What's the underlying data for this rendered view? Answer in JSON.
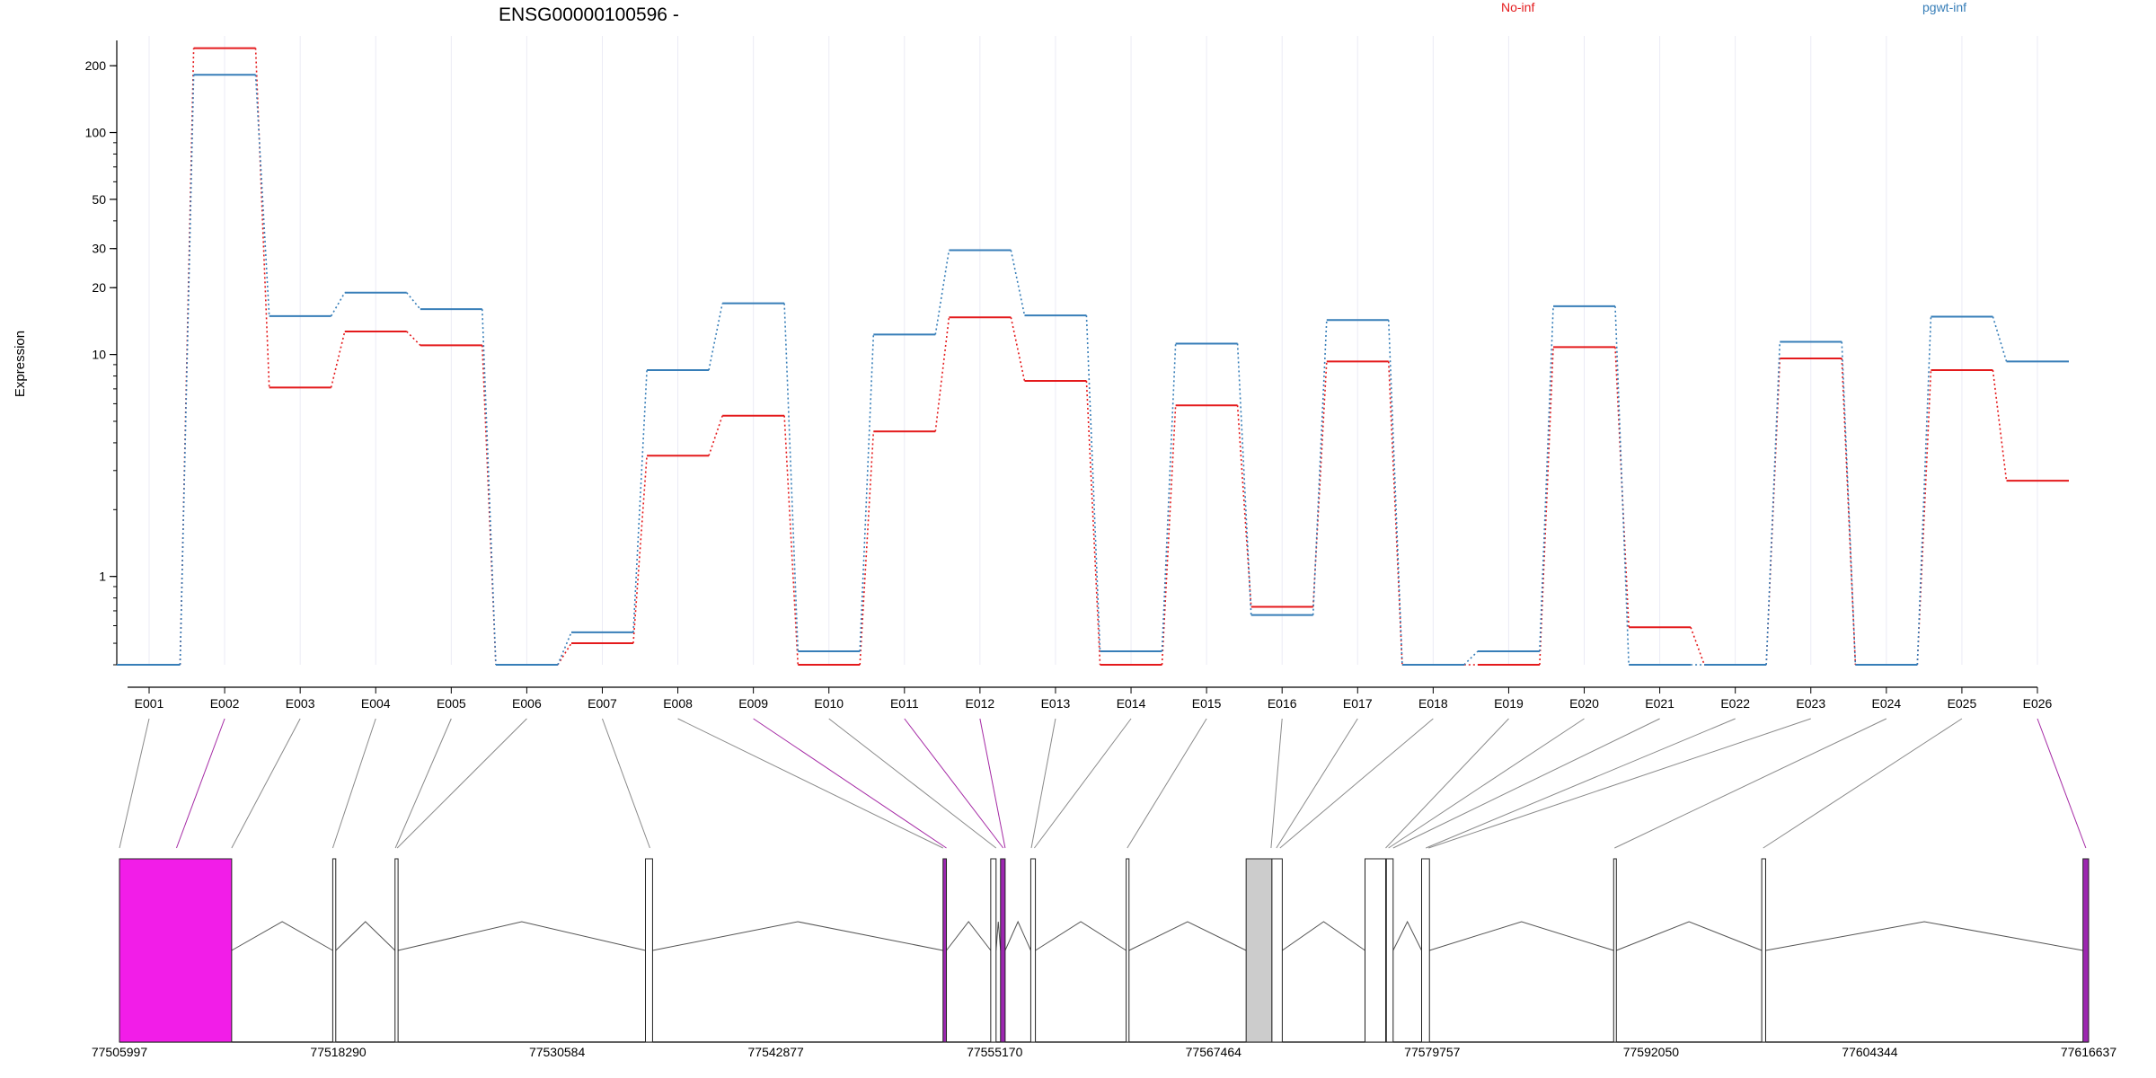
{
  "chart_data": {
    "type": "line",
    "title": "ENSG00000100596 -",
    "ylabel": "Expression",
    "xlabel": "",
    "yscale": "log",
    "ylim": [
      0.4,
      260
    ],
    "yticks": [
      1,
      10,
      20,
      30,
      50,
      100,
      200
    ],
    "grid": "vertical gridlines at exon columns",
    "legend_placement": "top",
    "categories": [
      "E001",
      "E002",
      "E003",
      "E004",
      "E005",
      "E006",
      "E007",
      "E008",
      "E009",
      "E010",
      "E011",
      "E012",
      "E013",
      "E014",
      "E015",
      "E016",
      "E017",
      "E018",
      "E019",
      "E020",
      "E021",
      "E022",
      "E023",
      "E024",
      "E025",
      "E026"
    ],
    "series": [
      {
        "name": "No-inf",
        "color": "#e41a1c",
        "values": [
          0.4,
          240,
          7.1,
          12.7,
          11.0,
          0.4,
          0.5,
          3.5,
          5.3,
          0.4,
          4.5,
          14.7,
          7.6,
          0.4,
          5.9,
          0.73,
          9.3,
          0.4,
          0.4,
          10.8,
          0.59,
          0.4,
          9.6,
          0.4,
          8.5,
          2.7
        ]
      },
      {
        "name": "pgwt-inf",
        "color": "#377eb8",
        "values": [
          0.4,
          182,
          14.9,
          19.0,
          16.0,
          0.4,
          0.56,
          8.5,
          17.0,
          0.46,
          12.3,
          29.5,
          15.0,
          0.46,
          11.2,
          0.67,
          14.3,
          0.4,
          0.46,
          16.5,
          0.4,
          0.4,
          11.4,
          0.4,
          14.8,
          9.3
        ]
      }
    ],
    "gene_model": {
      "coord_ticks": [
        "77505997",
        "77518290",
        "77530584",
        "77542877",
        "77555170",
        "77567464",
        "77579757",
        "77592050",
        "77604344",
        "77616637"
      ],
      "genome_range": [
        77505997,
        77616637
      ],
      "exons": [
        {
          "start": 77505997,
          "end": 77512300,
          "fill": "#f21de8"
        },
        {
          "start": 77517980,
          "end": 77518150,
          "fill": "#ffffff"
        },
        {
          "start": 77521480,
          "end": 77521650,
          "fill": "#ffffff"
        },
        {
          "start": 77535550,
          "end": 77535950,
          "fill": "#ffffff"
        },
        {
          "start": 77552270,
          "end": 77552460,
          "fill": "#9c27b0"
        },
        {
          "start": 77554950,
          "end": 77555250,
          "fill": "#ffffff"
        },
        {
          "start": 77555500,
          "end": 77555760,
          "fill": "#9c27b0"
        },
        {
          "start": 77557200,
          "end": 77557460,
          "fill": "#ffffff"
        },
        {
          "start": 77562560,
          "end": 77562720,
          "fill": "#ffffff"
        },
        {
          "start": 77569300,
          "end": 77570750,
          "fill": "#cccccc"
        },
        {
          "start": 77570750,
          "end": 77571330,
          "fill": "#ffffff"
        },
        {
          "start": 77575980,
          "end": 77577140,
          "fill": "#ffffff"
        },
        {
          "start": 77577180,
          "end": 77577560,
          "fill": "#ffffff"
        },
        {
          "start": 77579160,
          "end": 77579600,
          "fill": "#ffffff"
        },
        {
          "start": 77589950,
          "end": 77590100,
          "fill": "#ffffff"
        },
        {
          "start": 77598270,
          "end": 77598490,
          "fill": "#ffffff"
        },
        {
          "start": 77616320,
          "end": 77616637,
          "fill": "#9c27b0"
        }
      ],
      "connector_targets": [
        77505997,
        77509200,
        77512300,
        77517980,
        77521500,
        77521600,
        77535800,
        77552270,
        77552460,
        77555250,
        77555650,
        77555760,
        77557230,
        77557400,
        77562620,
        77570700,
        77571000,
        77571200,
        77577140,
        77577300,
        77577560,
        77579400,
        77579550,
        77590000,
        77598350,
        77616480
      ],
      "highlighted_connectors": [
        1,
        8,
        10,
        11,
        25
      ]
    }
  }
}
